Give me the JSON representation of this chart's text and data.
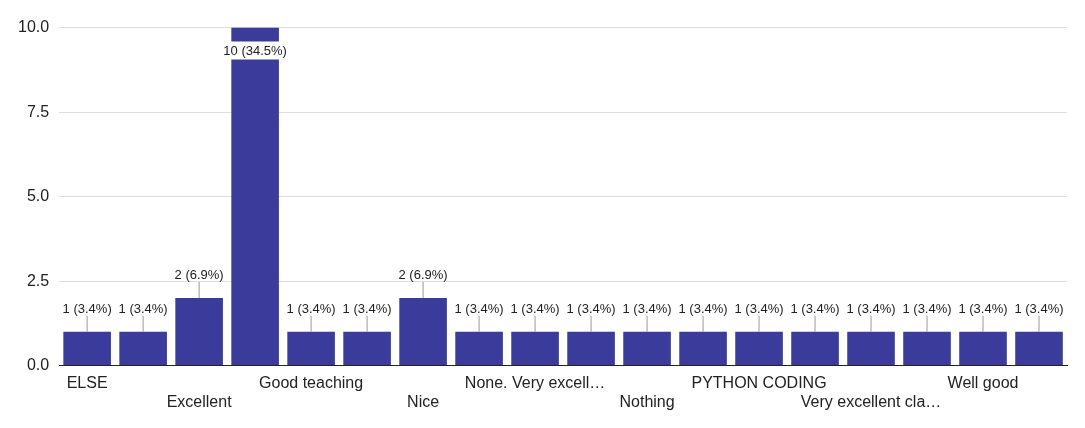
{
  "chart_data": {
    "type": "bar",
    "categories": [
      "ELSE",
      null,
      "Excellent",
      null,
      "Good teaching",
      null,
      "Nice",
      null,
      "None. Very excell…",
      null,
      "Nothing",
      null,
      "PYTHON CODING",
      null,
      "Very excellent cla…",
      null,
      "Well good",
      null
    ],
    "values": [
      1,
      1,
      2,
      10,
      1,
      1,
      2,
      1,
      1,
      1,
      1,
      1,
      1,
      1,
      1,
      1,
      1,
      1
    ],
    "value_labels": [
      "1 (3.4%)",
      "1 (3.4%)",
      "2 (6.9%)",
      "10 (34.5%)",
      "1 (3.4%)",
      "1 (3.4%)",
      "2 (6.9%)",
      "1 (3.4%)",
      "1 (3.4%)",
      "1 (3.4%)",
      "1 (3.4%)",
      "1 (3.4%)",
      "1 (3.4%)",
      "1 (3.4%)",
      "1 (3.4%)",
      "1 (3.4%)",
      "1 (3.4%)",
      "1 (3.4%)"
    ],
    "color": "#3b3b9c",
    "ylim": [
      0,
      10
    ],
    "yticks": [
      {
        "value": 0,
        "label": "0.0"
      },
      {
        "value": 2.5,
        "label": "2.5"
      },
      {
        "value": 5,
        "label": "5.0"
      },
      {
        "value": 7.5,
        "label": "7.5"
      },
      {
        "value": 10,
        "label": "10.0"
      }
    ],
    "grid": "y",
    "legend": false
  }
}
